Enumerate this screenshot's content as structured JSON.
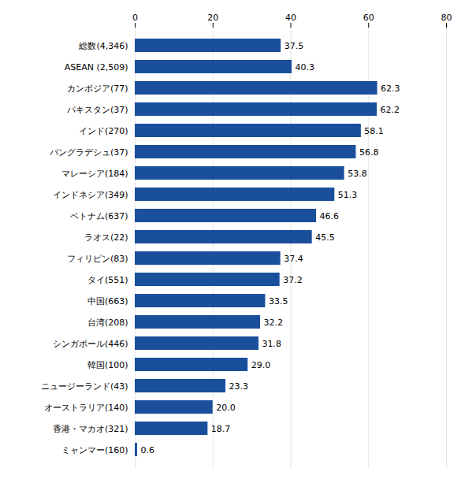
{
  "chart_data": {
    "type": "bar",
    "orientation": "horizontal",
    "categories": [
      "ミャンマー(160)",
      "香港・マカオ(321)",
      "オーストラリア(140)",
      "ニュージーランド(43)",
      "韓国(100)",
      "シンガポール(446)",
      "台湾(208)",
      "中国(663)",
      "タイ(551)",
      "フィリピン(83)",
      "ラオス(22)",
      "ベトナム(637)",
      "インドネシア(349)",
      "マレーシア(184)",
      "バングラデシュ(37)",
      "インド(270)",
      "パキスタン(37)",
      "カンボジア(77)",
      "ASEAN (2,509)",
      "総数(4,346)"
    ],
    "values": [
      0.6,
      18.7,
      20.0,
      23.3,
      29.0,
      31.8,
      32.2,
      33.5,
      37.2,
      37.4,
      45.5,
      46.6,
      51.3,
      53.8,
      56.8,
      58.1,
      62.2,
      62.3,
      40.3,
      37.5
    ],
    "value_labels": [
      "0.6",
      "18.7",
      "20.0",
      "23.3",
      "29.0",
      "31.8",
      "32.2",
      "33.5",
      "37.2",
      "37.4",
      "45.5",
      "46.6",
      "51.3",
      "53.8",
      "56.8",
      "58.1",
      "62.2",
      "62.3",
      "40.3",
      "37.5"
    ],
    "color": "#1a4f9c",
    "xlim": [
      0,
      80
    ],
    "xticks": [
      0,
      20,
      40,
      60,
      80
    ],
    "grid": true,
    "data_labels": true
  }
}
